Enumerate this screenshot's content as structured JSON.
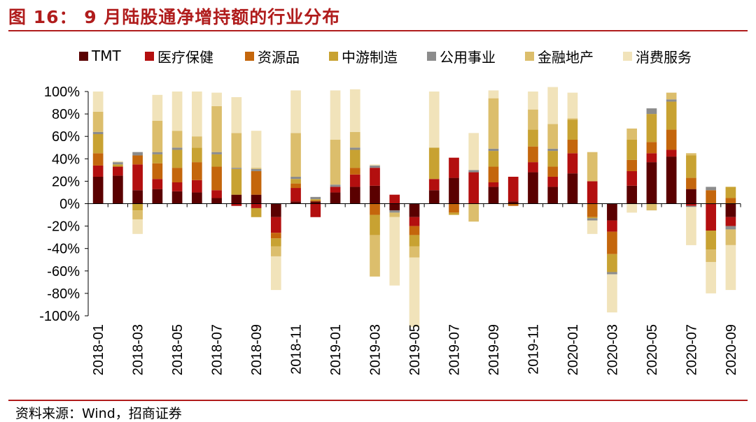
{
  "title": "图 16： 9 月陆股通净增持额的行业分布",
  "source": "资料来源：Wind，招商证券",
  "colors": {
    "TMT": "#5a0000",
    "医疗保健": "#b30f0f",
    "资源品": "#c4660c",
    "中游制造": "#c8a232",
    "公用事业": "#8c8c8c",
    "金融地产": "#dcbe6c",
    "消费服务": "#f1e3ba"
  },
  "chart_data": {
    "type": "bar",
    "stacked": true,
    "yaxis_unit": "%",
    "ylim": [
      -100,
      100
    ],
    "ytick_step": 20,
    "categories": [
      "2018-01",
      "2018-02",
      "2018-03",
      "2018-04",
      "2018-05",
      "2018-06",
      "2018-07",
      "2018-08",
      "2018-09",
      "2018-10",
      "2018-11",
      "2018-12",
      "2019-01",
      "2019-02",
      "2019-03",
      "2019-04",
      "2019-05",
      "2019-06",
      "2019-07",
      "2019-08",
      "2019-09",
      "2019-10",
      "2019-11",
      "2019-12",
      "2020-01",
      "2020-02",
      "2020-03",
      "2020-04",
      "2020-05",
      "2020-06",
      "2020-07",
      "2020-08",
      "2020-09"
    ],
    "xtick_labels": [
      "2018-01",
      "2018-03",
      "2018-05",
      "2018-07",
      "2018-09",
      "2018-11",
      "2019-01",
      "2019-03",
      "2019-05",
      "2019-07",
      "2019-09",
      "2019-11",
      "2020-01",
      "2020-03",
      "2020-05",
      "2020-07",
      "2020-09"
    ],
    "series": [
      {
        "name": "TMT",
        "values": [
          24,
          25,
          12,
          13,
          11,
          10,
          5,
          8,
          8,
          -12,
          2,
          2,
          10,
          15,
          16,
          -6,
          -12,
          12,
          23,
          0,
          15,
          2,
          28,
          15,
          27,
          0,
          -15,
          16,
          37,
          42,
          13,
          0,
          -12
        ]
      },
      {
        "name": "医疗保健",
        "values": [
          10,
          8,
          23,
          9,
          8,
          11,
          7,
          -2,
          -4,
          -14,
          12,
          -12,
          5,
          11,
          16,
          8,
          -8,
          10,
          18,
          28,
          4,
          22,
          9,
          9,
          18,
          20,
          -10,
          13,
          8,
          6,
          -2,
          -24,
          -8
        ]
      },
      {
        "name": "资源品",
        "values": [
          11,
          0,
          8,
          14,
          13,
          16,
          21,
          0,
          21,
          -5,
          4,
          1,
          0,
          6,
          -10,
          0,
          -8,
          0,
          -8,
          0,
          14,
          -2,
          14,
          9,
          12,
          -12,
          -20,
          10,
          10,
          18,
          10,
          12,
          5
        ]
      },
      {
        "name": "中游制造",
        "values": [
          17,
          2,
          -6,
          8,
          16,
          13,
          11,
          23,
          -8,
          -7,
          4,
          1,
          0,
          16,
          -18,
          0,
          -10,
          28,
          -2,
          0,
          14,
          0,
          15,
          14,
          18,
          -1,
          -16,
          18,
          25,
          25,
          20,
          -17,
          10
        ]
      },
      {
        "name": "公用事业",
        "values": [
          2,
          2,
          3,
          2,
          2,
          0,
          2,
          1,
          2,
          0,
          2,
          2,
          2,
          2,
          2,
          -2,
          0,
          0,
          0,
          2,
          2,
          0,
          0,
          2,
          0,
          -2,
          -2,
          0,
          5,
          2,
          -1,
          3,
          -3
        ]
      },
      {
        "name": "金融地产",
        "values": [
          18,
          0,
          -8,
          28,
          15,
          10,
          41,
          31,
          1,
          -9,
          39,
          0,
          40,
          14,
          -37,
          -4,
          -10,
          0,
          0,
          -16,
          45,
          0,
          18,
          22,
          1,
          26,
          0,
          10,
          -6,
          6,
          2,
          -11,
          -14
        ]
      },
      {
        "name": "消费服务",
        "values": [
          18,
          1,
          -13,
          23,
          35,
          40,
          12,
          32,
          33,
          -30,
          38,
          0,
          44,
          38,
          1,
          -61,
          -62,
          50,
          0,
          33,
          7,
          0,
          16,
          33,
          23,
          -12,
          -34,
          -8,
          0,
          0,
          -34,
          -28,
          -40
        ]
      }
    ],
    "legend": [
      "TMT",
      "医疗保健",
      "资源品",
      "中游制造",
      "公用事业",
      "金融地产",
      "消费服务"
    ],
    "legend_position": "top",
    "grid": false
  }
}
